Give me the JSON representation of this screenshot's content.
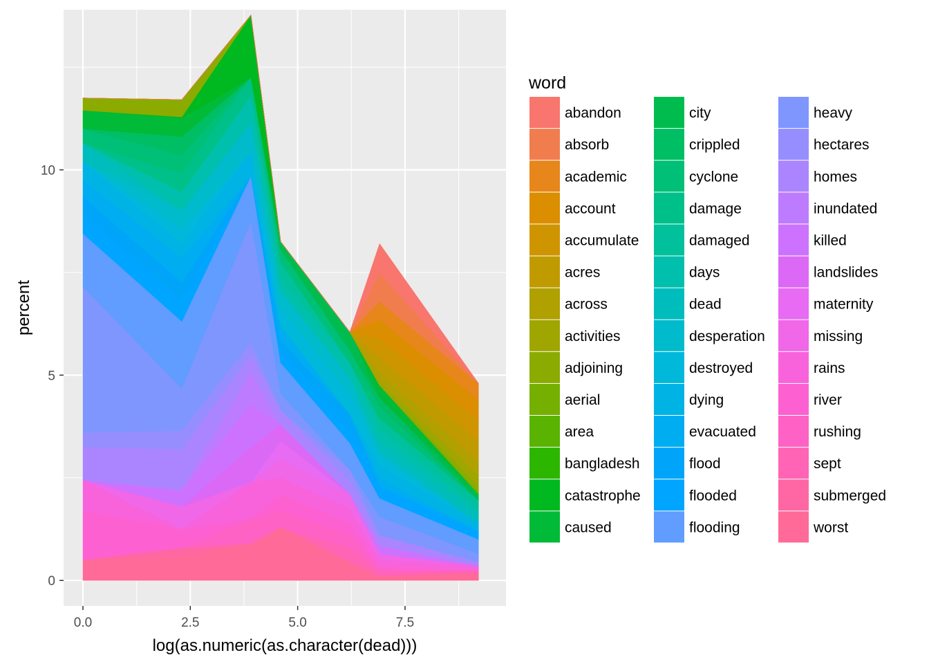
{
  "chart_data": {
    "type": "area",
    "stacked": true,
    "xlabel": "log(as.numeric(as.character(dead)))",
    "ylabel": "percent",
    "xlim": [
      -0.45,
      9.85
    ],
    "ylim": [
      -0.62,
      13.9
    ],
    "x_ticks": [
      0,
      2.5,
      5,
      7.5
    ],
    "x_tick_labels": [
      "0.0",
      "2.5",
      "5.0",
      "7.5"
    ],
    "y_ticks": [
      0,
      5,
      10
    ],
    "y_tick_labels": [
      "0",
      "5",
      "10"
    ],
    "grid": true,
    "legend_title": "word",
    "legend_position": "right",
    "x": [
      0,
      2.3026,
      3.912,
      4.6052,
      6.2146,
      6.9078,
      9.2103
    ],
    "series": [
      {
        "name": "abandon",
        "values": [
          0,
          0,
          0,
          0,
          0,
          0.7,
          0
        ]
      },
      {
        "name": "absorb",
        "values": [
          0,
          0,
          0,
          0,
          0,
          0.7,
          0
        ]
      },
      {
        "name": "academic",
        "values": [
          0,
          0,
          0,
          0,
          0,
          0.45,
          0.4
        ]
      },
      {
        "name": "account",
        "values": [
          0,
          0,
          0,
          0,
          0,
          0.45,
          0.5
        ]
      },
      {
        "name": "accumulate",
        "values": [
          0,
          0,
          0,
          0,
          0,
          0.45,
          0.5
        ]
      },
      {
        "name": "acres",
        "values": [
          0,
          0,
          0,
          0,
          0,
          0.35,
          0.5
        ]
      },
      {
        "name": "across",
        "values": [
          0,
          0,
          0,
          0,
          0,
          0.25,
          0.35
        ]
      },
      {
        "name": "activities",
        "values": [
          0,
          0,
          0,
          0,
          0,
          0.1,
          0.25
        ]
      },
      {
        "name": "adjoining",
        "values": [
          0.3,
          0.42,
          0,
          0,
          0,
          0,
          0.15
        ]
      },
      {
        "name": "aerial",
        "values": [
          0,
          0,
          0,
          0,
          0,
          0,
          0.05
        ]
      },
      {
        "name": "area",
        "values": [
          0,
          0,
          0,
          0,
          0,
          0,
          0
        ]
      },
      {
        "name": "bangladesh",
        "values": [
          0,
          0,
          0,
          0,
          0,
          0,
          0
        ]
      },
      {
        "name": "catastrophe",
        "values": [
          0,
          0.03,
          1.52,
          0,
          0,
          0,
          0
        ]
      },
      {
        "name": "caused",
        "values": [
          0.45,
          0.45,
          0,
          0,
          0,
          0.3,
          0
        ]
      },
      {
        "name": "city",
        "values": [
          0,
          0,
          0,
          0.2,
          0.45,
          0,
          0.15
        ]
      },
      {
        "name": "crippled",
        "values": [
          0,
          0.45,
          0,
          0,
          0,
          0.2,
          0
        ]
      },
      {
        "name": "cyclone",
        "values": [
          0.35,
          0.45,
          0,
          0.3,
          0.3,
          0.3,
          0
        ]
      },
      {
        "name": "damage",
        "values": [
          0,
          0.45,
          0.45,
          0,
          0,
          0,
          0
        ]
      },
      {
        "name": "damaged",
        "values": [
          0,
          0,
          0,
          0.4,
          0,
          0.25,
          0.2
        ]
      },
      {
        "name": "days",
        "values": [
          0,
          0.45,
          0.65,
          0.3,
          0.35,
          0.3,
          0.15
        ]
      },
      {
        "name": "dead",
        "values": [
          0.45,
          0,
          0,
          0,
          0,
          0.3,
          0.2
        ]
      },
      {
        "name": "desperation",
        "values": [
          0,
          0.45,
          0.7,
          0.4,
          0.45,
          0,
          0
        ]
      },
      {
        "name": "destroyed",
        "values": [
          0,
          0.35,
          0,
          0.45,
          0.45,
          0.3,
          0
        ]
      },
      {
        "name": "dying",
        "values": [
          0.45,
          0.35,
          0.6,
          0,
          0,
          0.3,
          0.2
        ]
      },
      {
        "name": "evacuated",
        "values": [
          0.4,
          0.6,
          0,
          0.35,
          0,
          0.2,
          0
        ]
      },
      {
        "name": "flood",
        "values": [
          0.45,
          0.45,
          0,
          0.25,
          0.35,
          0,
          0
        ]
      },
      {
        "name": "flooded",
        "values": [
          0.45,
          0.5,
          0,
          0.3,
          0.35,
          0.3,
          0.2
        ]
      },
      {
        "name": "flooding",
        "values": [
          1.3,
          1.63,
          1.1,
          0.75,
          0.65,
          0.45,
          0.35
        ]
      },
      {
        "name": "heavy",
        "values": [
          3.55,
          1.03,
          2.95,
          0.4,
          0,
          0.45,
          0.2
        ]
      },
      {
        "name": "hectares",
        "values": [
          0.35,
          0.45,
          0.3,
          0,
          0.3,
          0,
          0
        ]
      },
      {
        "name": "homes",
        "values": [
          0.8,
          1.0,
          0.4,
          0.35,
          0.3,
          0.25,
          0.1
        ]
      },
      {
        "name": "inundated",
        "values": [
          0,
          0,
          0.8,
          0,
          0,
          0,
          0
        ]
      },
      {
        "name": "killed",
        "values": [
          0,
          0.4,
          1.05,
          0,
          0,
          0.2,
          0
        ]
      },
      {
        "name": "landslides",
        "values": [
          0,
          0,
          0.85,
          0.4,
          0,
          0,
          0
        ]
      },
      {
        "name": "maternity",
        "values": [
          0,
          0,
          0,
          0.45,
          0,
          0,
          0
        ]
      },
      {
        "name": "missing",
        "values": [
          0,
          0.55,
          0,
          0.45,
          0.35,
          0.15,
          0
        ]
      },
      {
        "name": "rains",
        "values": [
          0.75,
          0,
          0.9,
          0.4,
          0.35,
          0.2,
          0.1
        ]
      },
      {
        "name": "river",
        "values": [
          1.2,
          0.45,
          0,
          0.4,
          0.3,
          0,
          0
        ]
      },
      {
        "name": "rushing",
        "values": [
          0,
          0,
          0.6,
          0.4,
          0.3,
          0.1,
          0.05
        ]
      },
      {
        "name": "sept",
        "values": [
          0,
          0,
          0,
          0,
          0.35,
          0.1,
          0
        ]
      },
      {
        "name": "submerged",
        "values": [
          0,
          0.2,
          0,
          0,
          0,
          0,
          0
        ]
      },
      {
        "name": "worst",
        "values": [
          0.5,
          0.6,
          0.9,
          1.3,
          0.45,
          0.1,
          0.2
        ]
      }
    ],
    "colors": [
      "#F8766D",
      "#F17D4F",
      "#E7861B",
      "#DB8E00",
      "#CE9500",
      "#C09B00",
      "#B0A000",
      "#9FA600",
      "#8CAB00",
      "#75AF00",
      "#59B300",
      "#2CB600",
      "#00B81F",
      "#00BA38",
      "#00BC4F",
      "#00BE64",
      "#00BF77",
      "#00C08A",
      "#00C19C",
      "#00BFAD",
      "#00BDBD",
      "#00BBCB",
      "#00B8D9",
      "#00B3E5",
      "#00ADF0",
      "#00A5FA",
      "#00A5FF",
      "#619CFF",
      "#7F96FF",
      "#968EFF",
      "#AB85FF",
      "#BD7CFF",
      "#CD72FF",
      "#DB69F6",
      "#E76BF3",
      "#F067E8",
      "#F863DB",
      "#FD61D1",
      "#FF62C5",
      "#FF64B5",
      "#FF67A4",
      "#FF6A98"
    ]
  }
}
